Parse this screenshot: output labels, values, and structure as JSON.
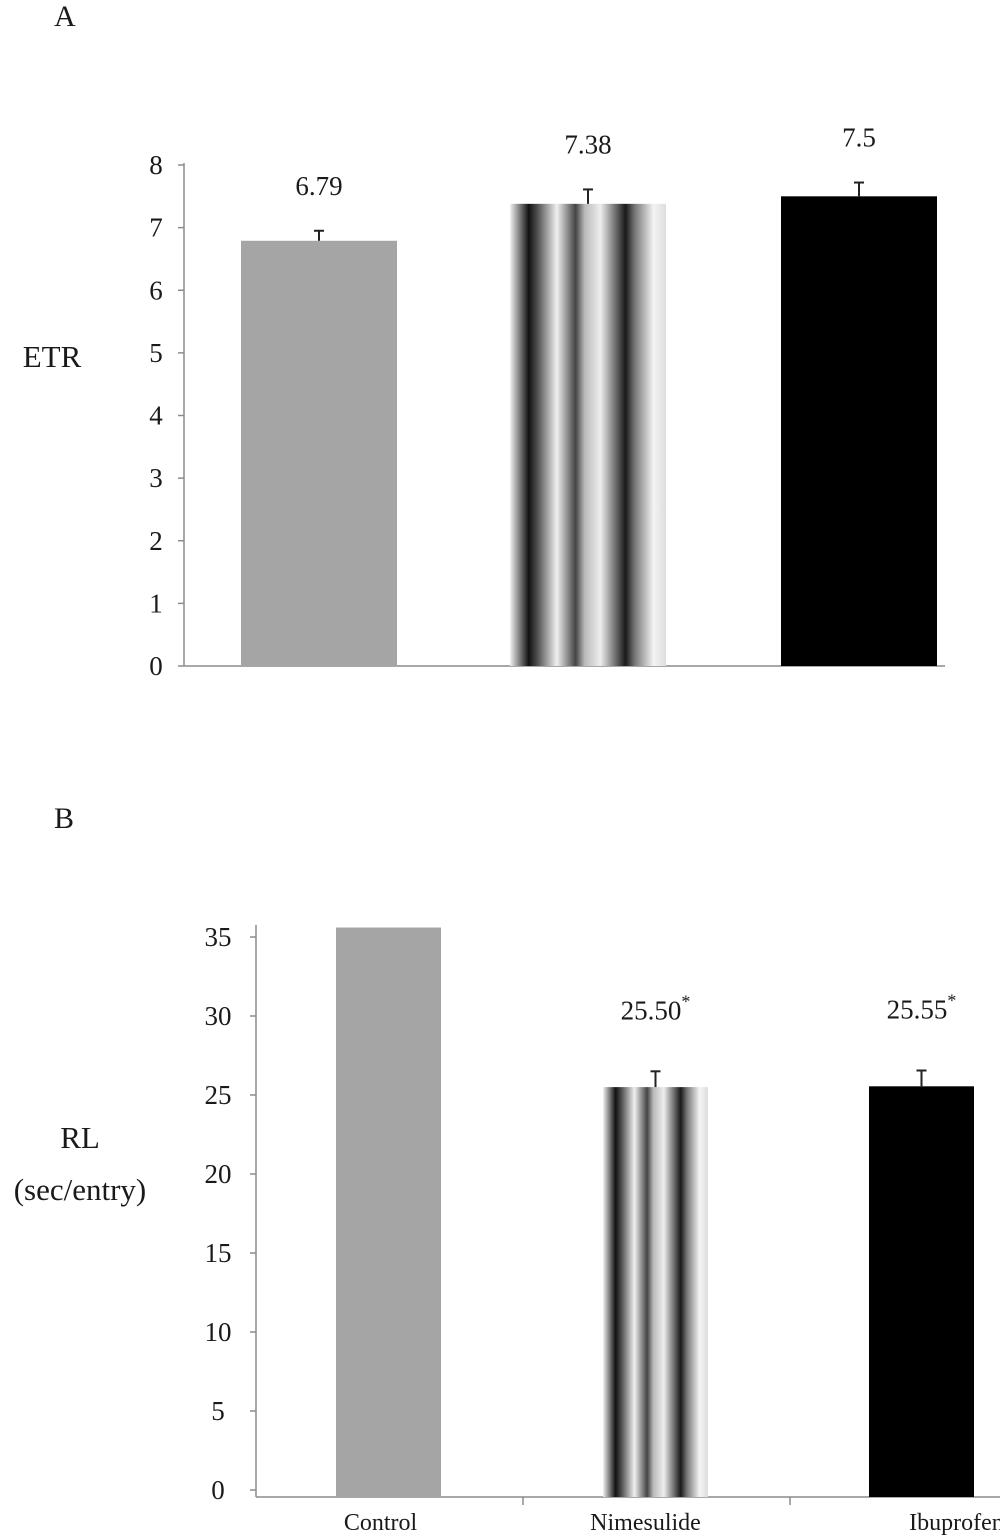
{
  "chart_data": [
    {
      "type": "bar",
      "panel": "A",
      "ylabel": "ETR",
      "ylim": [
        0,
        8
      ],
      "yticks": [
        "0",
        "1",
        "2",
        "3",
        "4",
        "5",
        "6",
        "7",
        "8"
      ],
      "categories": [
        "",
        "",
        ""
      ],
      "values": [
        6.79,
        7.38,
        7.5
      ],
      "errors": [
        0.16,
        0.23,
        0.22
      ],
      "value_labels": [
        "6.79",
        "7.38",
        "7.5"
      ],
      "fills": [
        "gray",
        "striped",
        "black"
      ],
      "colors": {
        "gray": "#a5a5a5",
        "black": "#000000"
      },
      "grid": false,
      "legend": "none"
    },
    {
      "type": "bar",
      "panel": "B",
      "ylabel": "RL",
      "ylabel2": "(sec/entry)",
      "ylim": [
        0,
        35
      ],
      "yticks": [
        "0",
        "5",
        "10",
        "15",
        "20",
        "25",
        "30",
        "35"
      ],
      "categories": [
        "Control",
        "Nimesulide",
        "Ibuprofen"
      ],
      "values": [
        35.6,
        25.5,
        25.55
      ],
      "errors": [
        0,
        1.0,
        1.0
      ],
      "value_labels": [
        "",
        "25.50",
        "25.55"
      ],
      "value_marks": [
        "",
        "*",
        "*"
      ],
      "fills": [
        "gray",
        "striped",
        "black"
      ],
      "colors": {
        "gray": "#a5a5a5",
        "black": "#000000"
      },
      "grid": false,
      "legend": "none"
    }
  ]
}
